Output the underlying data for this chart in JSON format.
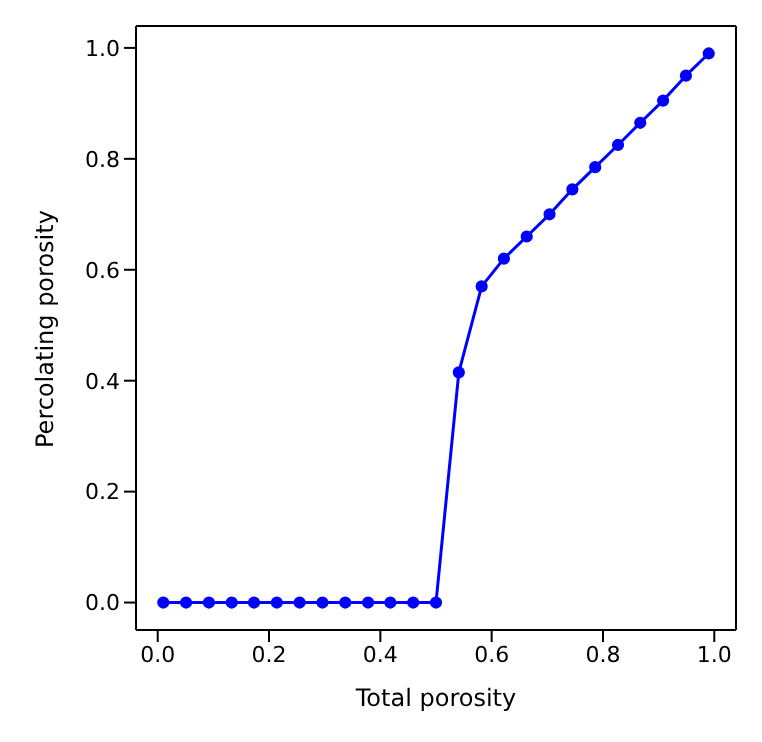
{
  "chart_data": {
    "type": "line",
    "xlabel": "Total porosity",
    "ylabel": "Percolating porosity",
    "x": [
      0.01,
      0.051,
      0.092,
      0.133,
      0.173,
      0.214,
      0.255,
      0.296,
      0.337,
      0.378,
      0.418,
      0.459,
      0.5,
      0.541,
      0.582,
      0.622,
      0.663,
      0.704,
      0.745,
      0.786,
      0.827,
      0.867,
      0.908,
      0.949,
      0.99
    ],
    "series": [
      {
        "color": "#0000ff",
        "values": [
          0,
          0,
          0,
          0,
          0,
          0,
          0,
          0,
          0,
          0,
          0,
          0,
          0,
          0.415,
          0.57,
          0.62,
          0.66,
          0.7,
          0.745,
          0.785,
          0.825,
          0.865,
          0.905,
          0.95,
          0.99
        ]
      }
    ],
    "xlim": [
      -0.039,
      1.039
    ],
    "ylim": [
      -0.0495,
      1.0395
    ],
    "xticks": [
      {
        "value": 0,
        "label": "0.0"
      },
      0.2,
      0.4,
      0.6,
      0.8,
      {
        "value": 1,
        "label": "1.0"
      }
    ],
    "yticks": [
      {
        "value": 0,
        "label": "0.0"
      },
      0.2,
      0.4,
      0.6,
      0.8,
      {
        "value": 1,
        "label": "1.0"
      }
    ],
    "grid": false,
    "legend": false,
    "marker": "circle",
    "line_style": "solid"
  }
}
